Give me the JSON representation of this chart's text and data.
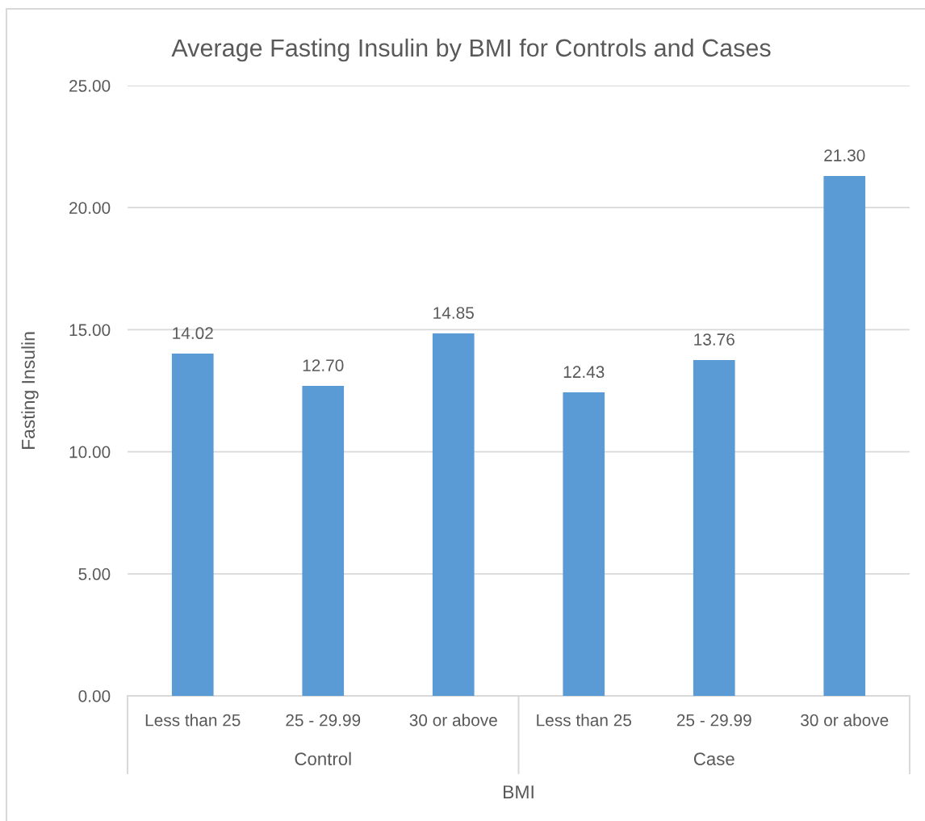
{
  "chart_data": {
    "type": "bar",
    "title": "Average Fasting Insulin by BMI for Controls and Cases",
    "xlabel": "BMI",
    "ylabel": "Fasting Insulin",
    "categories": [
      "Less than 25",
      "25 - 29.99",
      "30 or above",
      "Less than 25",
      "25 - 29.99",
      "30 or above"
    ],
    "annotations": [
      "Control",
      "Case"
    ],
    "values": [
      14.02,
      12.7,
      14.85,
      12.43,
      13.76,
      21.3
    ],
    "color": "#5b9bd5",
    "value_labels": [
      "14.02",
      "12.70",
      "14.85",
      "12.43",
      "13.76",
      "21.30"
    ],
    "ylim": [
      0,
      25
    ],
    "yticks": [
      {
        "value": 0,
        "label": "0.00"
      },
      {
        "value": 5,
        "label": "5.00"
      },
      {
        "value": 10,
        "label": "10.00"
      },
      {
        "value": 15,
        "label": "15.00"
      },
      {
        "value": 20,
        "label": "20.00"
      },
      {
        "value": 25,
        "label": "25.00"
      }
    ],
    "grid": "y"
  }
}
